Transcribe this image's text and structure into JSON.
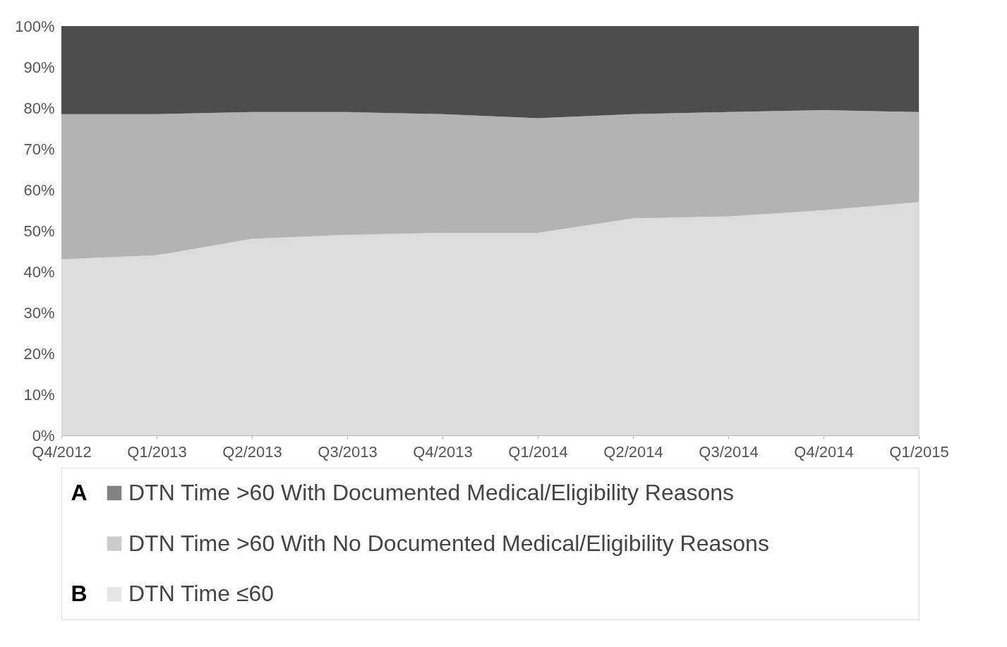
{
  "chart_data": {
    "type": "area",
    "stacked": true,
    "categories": [
      "Q4/2012",
      "Q1/2013",
      "Q2/2013",
      "Q3/2013",
      "Q4/2013",
      "Q1/2014",
      "Q2/2014",
      "Q3/2014",
      "Q4/2014",
      "Q1/2015"
    ],
    "series": [
      {
        "name": "DTN Time ≤60",
        "color": "#dcdcdc",
        "values": [
          43,
          44,
          48,
          49,
          49.5,
          49.5,
          53,
          53.5,
          55,
          57
        ]
      },
      {
        "name": "DTN Time >60 With No Documented Medical/Eligibility Reasons",
        "color": "#b3b3b3",
        "values": [
          35.5,
          34.5,
          31,
          30,
          29,
          28,
          25.5,
          25.5,
          24.5,
          22
        ]
      },
      {
        "name": "DTN Time >60 With Documented Medical/Eligibility Reasons",
        "color": "#4d4d4d",
        "values": [
          21.5,
          21.5,
          21,
          21,
          21.5,
          22.5,
          21.5,
          21,
          20.5,
          21
        ]
      }
    ],
    "ylim": [
      0,
      100
    ],
    "yticks": [
      {
        "value": 0,
        "label": "0%"
      },
      {
        "value": 10,
        "label": "10%"
      },
      {
        "value": 20,
        "label": "20%"
      },
      {
        "value": 30,
        "label": "30%"
      },
      {
        "value": 40,
        "label": "40%"
      },
      {
        "value": 50,
        "label": "50%"
      },
      {
        "value": 60,
        "label": "60%"
      },
      {
        "value": 70,
        "label": "70%"
      },
      {
        "value": 80,
        "label": "80%"
      },
      {
        "value": 90,
        "label": "90%"
      },
      {
        "value": 100,
        "label": "100%"
      }
    ],
    "grid": false,
    "legend": "bottom",
    "annotations": [
      "A",
      "B"
    ]
  }
}
